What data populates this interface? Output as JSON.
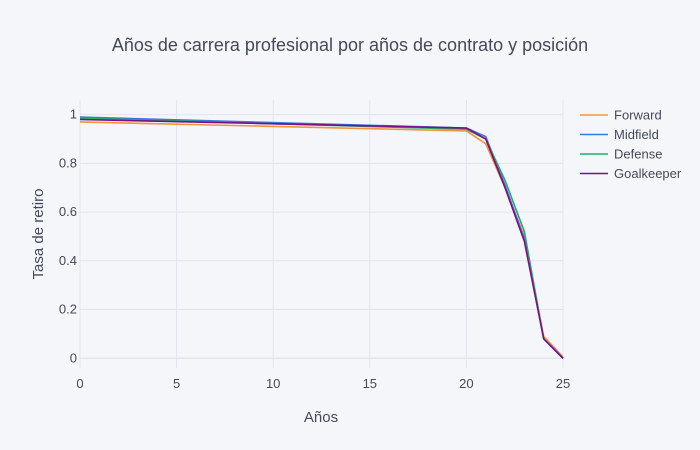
{
  "chart_data": {
    "type": "line",
    "title": "Años de carrera profesional por años de contrato y posición",
    "xlabel": "Años",
    "ylabel": "Tasa de retiro",
    "xlim": [
      0,
      25
    ],
    "ylim": [
      -0.04,
      1.06
    ],
    "x_ticks": [
      0,
      5,
      10,
      15,
      20,
      25
    ],
    "y_ticks": [
      0,
      0.2,
      0.4,
      0.6,
      0.8,
      1
    ],
    "x_tick_labels": [
      "0",
      "5",
      "10",
      "15",
      "20",
      "25"
    ],
    "y_tick_labels": [
      "0",
      "0.2",
      "0.4",
      "0.6",
      "0.8",
      "1"
    ],
    "grid": true,
    "legend_position": "top-right",
    "x": [
      0,
      20,
      21,
      22,
      23,
      24,
      25
    ],
    "series": [
      {
        "name": "Forward",
        "color": "#f0963c",
        "values": [
          0.97,
          0.933,
          0.88,
          0.7,
          0.5,
          0.09,
          0.005
        ]
      },
      {
        "name": "Midfield",
        "color": "#3b7bd6",
        "values": [
          0.99,
          0.945,
          0.91,
          0.71,
          0.49,
          0.08,
          0.0
        ]
      },
      {
        "name": "Defense",
        "color": "#2ca866",
        "values": [
          0.985,
          0.94,
          0.9,
          0.73,
          0.52,
          0.08,
          0.0
        ]
      },
      {
        "name": "Goalkeeper",
        "color": "#7d0e8a",
        "values": [
          0.98,
          0.945,
          0.9,
          0.7,
          0.48,
          0.08,
          0.0
        ]
      }
    ]
  }
}
